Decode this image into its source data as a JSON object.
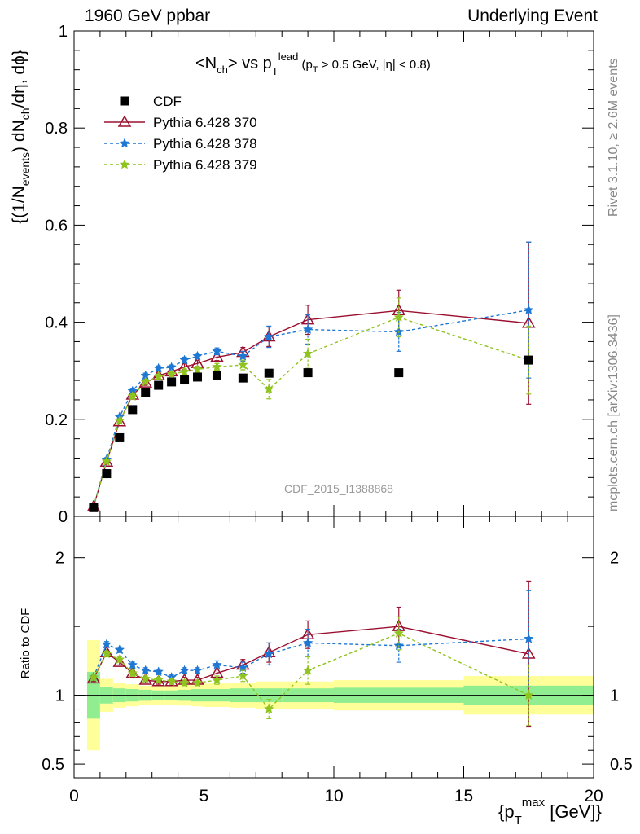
{
  "header": {
    "left": "1960 GeV ppbar",
    "right": "Underlying Event"
  },
  "side_text": {
    "rivet": "Rivet 3.1.10, ≥ 2.6M events",
    "mcplots": "mcplots.cern.ch [arXiv:1306.3436]"
  },
  "watermark": "CDF_2015_I1388868",
  "chart_data": [
    {
      "type": "scatter",
      "panel": "main",
      "title": "<N_ch> vs p_T^lead (p_T > 0.5 GeV, |η| < 0.8)",
      "ylabel": "{(1/N_events) dN_ch/dη, dϕ}",
      "xlim": [
        0,
        20
      ],
      "ylim": [
        0,
        1
      ],
      "yticks": [
        "0",
        "0.2",
        "0.4",
        "0.6",
        "0.8",
        "1"
      ],
      "legend_position": "top-left",
      "series": [
        {
          "name": "CDF",
          "color": "#000000",
          "marker": "square",
          "x": [
            0.75,
            1.25,
            1.75,
            2.25,
            2.75,
            3.25,
            3.75,
            4.25,
            4.75,
            5.5,
            6.5,
            7.5,
            9.0,
            12.5,
            17.5
          ],
          "y": [
            0.018,
            0.088,
            0.162,
            0.22,
            0.255,
            0.27,
            0.277,
            0.281,
            0.287,
            0.29,
            0.285,
            0.295,
            0.296,
            0.296,
            0.322
          ]
        },
        {
          "name": "Pythia 6.428 370",
          "color": "#9b1030",
          "marker": "triangle",
          "line": "solid",
          "x": [
            0.75,
            1.25,
            1.75,
            2.25,
            2.75,
            3.25,
            3.75,
            4.25,
            4.75,
            5.5,
            6.5,
            7.5,
            9.0,
            12.5,
            17.5
          ],
          "y": [
            0.02,
            0.112,
            0.195,
            0.25,
            0.275,
            0.29,
            0.298,
            0.308,
            0.315,
            0.328,
            0.338,
            0.37,
            0.405,
            0.424,
            0.398
          ],
          "yerr": [
            0.004,
            0.004,
            0.004,
            0.005,
            0.005,
            0.005,
            0.005,
            0.006,
            0.006,
            0.007,
            0.01,
            0.02,
            0.03,
            0.042,
            0.167
          ]
        },
        {
          "name": "Pythia 6.428 378",
          "color": "#1f77d4",
          "marker": "star",
          "line": "dashed",
          "x": [
            0.75,
            1.25,
            1.75,
            2.25,
            2.75,
            3.25,
            3.75,
            4.25,
            4.75,
            5.5,
            6.5,
            7.5,
            9.0,
            12.5,
            17.5
          ],
          "y": [
            0.02,
            0.117,
            0.205,
            0.258,
            0.29,
            0.305,
            0.307,
            0.322,
            0.33,
            0.34,
            0.33,
            0.37,
            0.385,
            0.38,
            0.425
          ],
          "yerr": [
            0.004,
            0.004,
            0.004,
            0.005,
            0.005,
            0.005,
            0.005,
            0.006,
            0.006,
            0.007,
            0.01,
            0.022,
            0.03,
            0.04,
            0.14
          ]
        },
        {
          "name": "Pythia 6.428 379",
          "color": "#8fc31f",
          "marker": "star",
          "line": "dashed",
          "x": [
            0.75,
            1.25,
            1.75,
            2.25,
            2.75,
            3.25,
            3.75,
            4.25,
            4.75,
            5.5,
            6.5,
            7.5,
            9.0,
            12.5,
            17.5
          ],
          "y": [
            0.02,
            0.113,
            0.197,
            0.247,
            0.277,
            0.288,
            0.293,
            0.298,
            0.303,
            0.308,
            0.312,
            0.262,
            0.335,
            0.41,
            0.322
          ],
          "yerr": [
            0.004,
            0.004,
            0.004,
            0.005,
            0.005,
            0.005,
            0.005,
            0.006,
            0.006,
            0.007,
            0.01,
            0.02,
            0.03,
            0.04,
            0.07
          ]
        }
      ]
    },
    {
      "type": "scatter",
      "panel": "ratio",
      "ylabel": "Ratio to CDF",
      "xlabel": "{p_T^max [GeV]}",
      "xlim": [
        0,
        20
      ],
      "ylim": [
        0.4,
        2.3
      ],
      "xticks": [
        "0",
        "5",
        "10",
        "15",
        "20"
      ],
      "yticks": [
        "0.5",
        "1",
        "2"
      ],
      "bands": {
        "x_edges": [
          0.5,
          1.0,
          1.5,
          2.0,
          2.5,
          3.0,
          3.5,
          4.0,
          4.5,
          5.0,
          6.0,
          7.0,
          8.0,
          10.0,
          15.0,
          20.0
        ],
        "green_half": [
          0.17,
          0.06,
          0.05,
          0.045,
          0.04,
          0.035,
          0.035,
          0.04,
          0.045,
          0.045,
          0.05,
          0.05,
          0.05,
          0.055,
          0.07
        ],
        "yellow_half": [
          0.4,
          0.12,
          0.09,
          0.08,
          0.07,
          0.07,
          0.07,
          0.075,
          0.08,
          0.085,
          0.09,
          0.1,
          0.1,
          0.11,
          0.14
        ],
        "green_color": "#90ee90",
        "yellow_color": "#ffff99"
      },
      "series": [
        {
          "name": "Pythia 6.428 370",
          "color": "#9b1030",
          "marker": "triangle",
          "line": "solid",
          "x": [
            0.75,
            1.25,
            1.75,
            2.25,
            2.75,
            3.25,
            3.75,
            4.25,
            4.75,
            5.5,
            6.5,
            7.5,
            9.0,
            12.5,
            17.5
          ],
          "y": [
            1.12,
            1.31,
            1.24,
            1.16,
            1.11,
            1.1,
            1.1,
            1.11,
            1.11,
            1.16,
            1.22,
            1.31,
            1.44,
            1.5,
            1.3
          ],
          "yerr": [
            0.02,
            0.02,
            0.02,
            0.02,
            0.02,
            0.02,
            0.02,
            0.02,
            0.02,
            0.03,
            0.04,
            0.07,
            0.1,
            0.14,
            0.53
          ]
        },
        {
          "name": "Pythia 6.428 378",
          "color": "#1f77d4",
          "marker": "star",
          "line": "dashed",
          "x": [
            0.75,
            1.25,
            1.75,
            2.25,
            2.75,
            3.25,
            3.75,
            4.25,
            4.75,
            5.5,
            6.5,
            7.5,
            9.0,
            12.5,
            17.5
          ],
          "y": [
            1.13,
            1.37,
            1.33,
            1.22,
            1.18,
            1.17,
            1.13,
            1.18,
            1.18,
            1.22,
            1.2,
            1.3,
            1.38,
            1.36,
            1.41
          ],
          "yerr": [
            0.02,
            0.02,
            0.02,
            0.02,
            0.02,
            0.02,
            0.02,
            0.02,
            0.02,
            0.03,
            0.04,
            0.08,
            0.1,
            0.12,
            0.35
          ]
        },
        {
          "name": "Pythia 6.428 379",
          "color": "#8fc31f",
          "marker": "star",
          "line": "dashed",
          "x": [
            0.75,
            1.25,
            1.75,
            2.25,
            2.75,
            3.25,
            3.75,
            4.25,
            4.75,
            5.5,
            6.5,
            7.5,
            9.0,
            12.5,
            17.5
          ],
          "y": [
            1.13,
            1.3,
            1.26,
            1.16,
            1.12,
            1.11,
            1.1,
            1.09,
            1.09,
            1.11,
            1.14,
            0.9,
            1.18,
            1.45,
            1.0
          ],
          "yerr": [
            0.02,
            0.02,
            0.02,
            0.02,
            0.02,
            0.02,
            0.02,
            0.02,
            0.02,
            0.03,
            0.04,
            0.07,
            0.1,
            0.12,
            0.22
          ]
        }
      ]
    }
  ]
}
